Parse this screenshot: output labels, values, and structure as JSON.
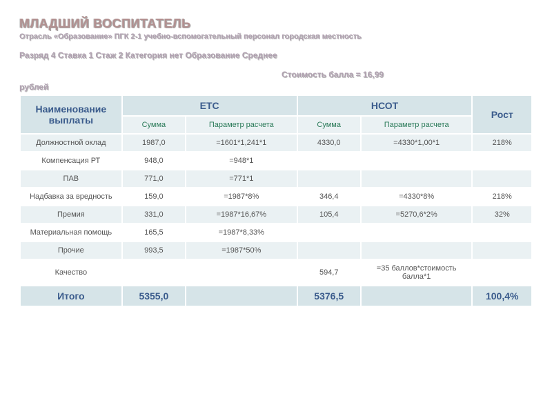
{
  "title": "МЛАДШИЙ ВОСПИТАТЕЛЬ",
  "subtitle": "Отрасль «Образование»   ПГК 2-1   учебно-вспомогательный персонал   городская местность",
  "params": "Разряд 4   Ставка 1   Стаж 2   Категория нет   Образование Среднее",
  "rate_right": "Стоимость балла = 16,99",
  "rate_left": "рублей",
  "headers": {
    "name": "Наименование выплаты",
    "etc": "ЕТС",
    "nsot": "НСОТ",
    "rost": "Рост",
    "sum": "Сумма",
    "param": "Параметр расчета"
  },
  "rows": [
    {
      "name": "Должностной оклад",
      "etc_sum": "1987,0",
      "etc_par": "=1601*1,241*1",
      "nsot_sum": "4330,0",
      "nsot_par": "=4330*1,00*1",
      "rost": "218%"
    },
    {
      "name": "Компенсация РТ",
      "etc_sum": "948,0",
      "etc_par": "=948*1",
      "nsot_sum": "",
      "nsot_par": "",
      "rost": ""
    },
    {
      "name": "ПАВ",
      "etc_sum": "771,0",
      "etc_par": "=771*1",
      "nsot_sum": "",
      "nsot_par": "",
      "rost": ""
    },
    {
      "name": "Надбавка за вредность",
      "etc_sum": "159,0",
      "etc_par": "=1987*8%",
      "nsot_sum": "346,4",
      "nsot_par": "=4330*8%",
      "rost": "218%"
    },
    {
      "name": "Премия",
      "etc_sum": "331,0",
      "etc_par": "=1987*16,67%",
      "nsot_sum": "105,4",
      "nsot_par": "=5270,6*2%",
      "rost": "32%"
    },
    {
      "name": "Материальная помощь",
      "etc_sum": "165,5",
      "etc_par": "=1987*8,33%",
      "nsot_sum": "",
      "nsot_par": "",
      "rost": ""
    },
    {
      "name": "Прочие",
      "etc_sum": "993,5",
      "etc_par": "=1987*50%",
      "nsot_sum": "",
      "nsot_par": "",
      "rost": ""
    },
    {
      "name": "Качество",
      "etc_sum": "",
      "etc_par": "",
      "nsot_sum": "594,7",
      "nsot_par": "=35 баллов*стоимость балла*1",
      "rost": ""
    }
  ],
  "total": {
    "name": "Итого",
    "etc_sum": "5355,0",
    "etc_par": "",
    "nsot_sum": "5376,5",
    "nsot_par": "",
    "rost": "100,4%"
  },
  "colors": {
    "header_bg": "#d6e4e8",
    "subheader_bg": "#eaf1f3",
    "header_fg": "#3a5b8c",
    "subheader_fg": "#2a7a58",
    "title_fg": "#b29090",
    "text_fg": "#555555"
  }
}
